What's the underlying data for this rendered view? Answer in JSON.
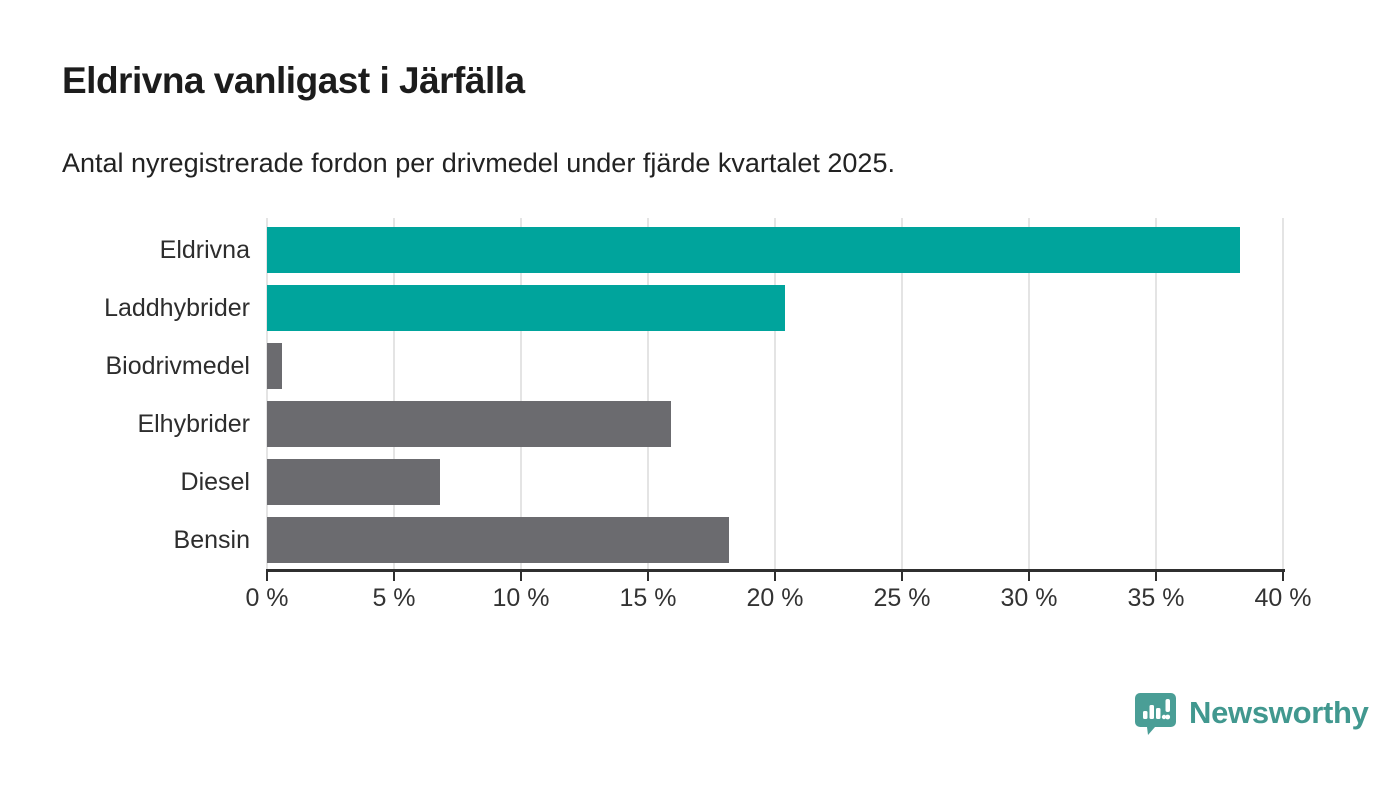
{
  "header": {
    "title": "Eldrivna vanligast i Järfälla",
    "subtitle": "Antal nyregistrerade fordon per drivmedel under fjärde kvartalet 2025."
  },
  "chart_data": {
    "type": "bar",
    "orientation": "horizontal",
    "title": "Eldrivna vanligast i Järfälla",
    "subtitle": "Antal nyregistrerade fordon per drivmedel under fjärde kvartalet 2025.",
    "categories": [
      "Eldrivna",
      "Laddhybrider",
      "Biodrivmedel",
      "Elhybrider",
      "Diesel",
      "Bensin"
    ],
    "values": [
      38.3,
      20.4,
      0.6,
      15.9,
      6.8,
      18.2
    ],
    "bar_colors": [
      "#00a49c",
      "#00a49c",
      "#6b6b6f",
      "#6b6b6f",
      "#6b6b6f",
      "#6b6b6f"
    ],
    "xlabel": "",
    "ylabel": "",
    "xlim": [
      0,
      40
    ],
    "x_ticks": [
      0,
      5,
      10,
      15,
      20,
      25,
      30,
      35,
      40
    ],
    "x_tick_labels": [
      "0 %",
      "5 %",
      "10 %",
      "15 %",
      "20 %",
      "25 %",
      "30 %",
      "35 %",
      "40 %"
    ],
    "grid": "vertical-gridlines-on",
    "legend": "none"
  },
  "colors": {
    "accent_teal": "#00a49c",
    "neutral_gray": "#6b6b6f",
    "axis_line": "#2f2f2f",
    "gridline": "#e4e4e4",
    "title_text": "#1c1c1c",
    "body_text": "#2d2d2d",
    "logo_teal": "#41988f"
  },
  "branding": {
    "logo_text": "Newsworthy",
    "logo_icon": "bar-chart-pin-icon"
  }
}
